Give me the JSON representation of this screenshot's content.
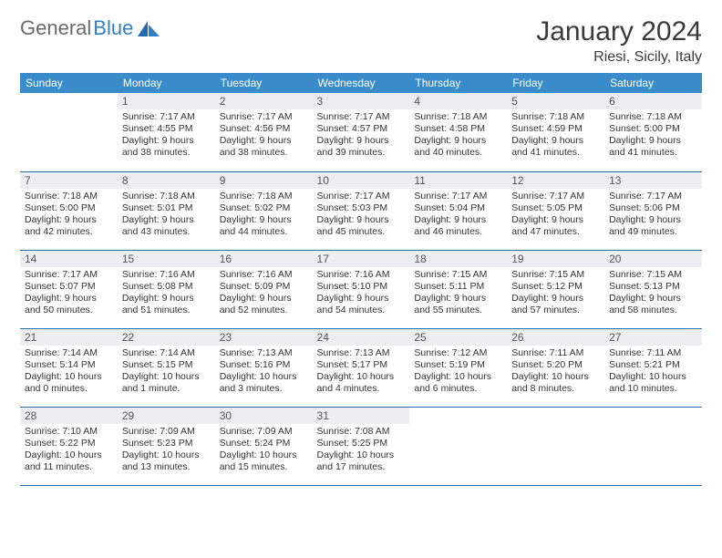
{
  "logo": {
    "text1": "General",
    "text2": "Blue"
  },
  "title": "January 2024",
  "location": "Riesi, Sicily, Italy",
  "colors": {
    "header_bg": "#3a8bc9",
    "header_text": "#ffffff",
    "daynum_bg": "#eceff1",
    "row_border": "#2e6ca6",
    "body_text": "#333333",
    "logo_gray": "#6a6a6a",
    "logo_blue": "#2f7fc2"
  },
  "weekdays": [
    "Sunday",
    "Monday",
    "Tuesday",
    "Wednesday",
    "Thursday",
    "Friday",
    "Saturday"
  ],
  "cells": [
    {
      "n": "",
      "t": ""
    },
    {
      "n": "1",
      "t": "Sunrise: 7:17 AM\nSunset: 4:55 PM\nDaylight: 9 hours and 38 minutes."
    },
    {
      "n": "2",
      "t": "Sunrise: 7:17 AM\nSunset: 4:56 PM\nDaylight: 9 hours and 38 minutes."
    },
    {
      "n": "3",
      "t": "Sunrise: 7:17 AM\nSunset: 4:57 PM\nDaylight: 9 hours and 39 minutes."
    },
    {
      "n": "4",
      "t": "Sunrise: 7:18 AM\nSunset: 4:58 PM\nDaylight: 9 hours and 40 minutes."
    },
    {
      "n": "5",
      "t": "Sunrise: 7:18 AM\nSunset: 4:59 PM\nDaylight: 9 hours and 41 minutes."
    },
    {
      "n": "6",
      "t": "Sunrise: 7:18 AM\nSunset: 5:00 PM\nDaylight: 9 hours and 41 minutes."
    },
    {
      "n": "7",
      "t": "Sunrise: 7:18 AM\nSunset: 5:00 PM\nDaylight: 9 hours and 42 minutes."
    },
    {
      "n": "8",
      "t": "Sunrise: 7:18 AM\nSunset: 5:01 PM\nDaylight: 9 hours and 43 minutes."
    },
    {
      "n": "9",
      "t": "Sunrise: 7:18 AM\nSunset: 5:02 PM\nDaylight: 9 hours and 44 minutes."
    },
    {
      "n": "10",
      "t": "Sunrise: 7:17 AM\nSunset: 5:03 PM\nDaylight: 9 hours and 45 minutes."
    },
    {
      "n": "11",
      "t": "Sunrise: 7:17 AM\nSunset: 5:04 PM\nDaylight: 9 hours and 46 minutes."
    },
    {
      "n": "12",
      "t": "Sunrise: 7:17 AM\nSunset: 5:05 PM\nDaylight: 9 hours and 47 minutes."
    },
    {
      "n": "13",
      "t": "Sunrise: 7:17 AM\nSunset: 5:06 PM\nDaylight: 9 hours and 49 minutes."
    },
    {
      "n": "14",
      "t": "Sunrise: 7:17 AM\nSunset: 5:07 PM\nDaylight: 9 hours and 50 minutes."
    },
    {
      "n": "15",
      "t": "Sunrise: 7:16 AM\nSunset: 5:08 PM\nDaylight: 9 hours and 51 minutes."
    },
    {
      "n": "16",
      "t": "Sunrise: 7:16 AM\nSunset: 5:09 PM\nDaylight: 9 hours and 52 minutes."
    },
    {
      "n": "17",
      "t": "Sunrise: 7:16 AM\nSunset: 5:10 PM\nDaylight: 9 hours and 54 minutes."
    },
    {
      "n": "18",
      "t": "Sunrise: 7:15 AM\nSunset: 5:11 PM\nDaylight: 9 hours and 55 minutes."
    },
    {
      "n": "19",
      "t": "Sunrise: 7:15 AM\nSunset: 5:12 PM\nDaylight: 9 hours and 57 minutes."
    },
    {
      "n": "20",
      "t": "Sunrise: 7:15 AM\nSunset: 5:13 PM\nDaylight: 9 hours and 58 minutes."
    },
    {
      "n": "21",
      "t": "Sunrise: 7:14 AM\nSunset: 5:14 PM\nDaylight: 10 hours and 0 minutes."
    },
    {
      "n": "22",
      "t": "Sunrise: 7:14 AM\nSunset: 5:15 PM\nDaylight: 10 hours and 1 minute."
    },
    {
      "n": "23",
      "t": "Sunrise: 7:13 AM\nSunset: 5:16 PM\nDaylight: 10 hours and 3 minutes."
    },
    {
      "n": "24",
      "t": "Sunrise: 7:13 AM\nSunset: 5:17 PM\nDaylight: 10 hours and 4 minutes."
    },
    {
      "n": "25",
      "t": "Sunrise: 7:12 AM\nSunset: 5:19 PM\nDaylight: 10 hours and 6 minutes."
    },
    {
      "n": "26",
      "t": "Sunrise: 7:11 AM\nSunset: 5:20 PM\nDaylight: 10 hours and 8 minutes."
    },
    {
      "n": "27",
      "t": "Sunrise: 7:11 AM\nSunset: 5:21 PM\nDaylight: 10 hours and 10 minutes."
    },
    {
      "n": "28",
      "t": "Sunrise: 7:10 AM\nSunset: 5:22 PM\nDaylight: 10 hours and 11 minutes."
    },
    {
      "n": "29",
      "t": "Sunrise: 7:09 AM\nSunset: 5:23 PM\nDaylight: 10 hours and 13 minutes."
    },
    {
      "n": "30",
      "t": "Sunrise: 7:09 AM\nSunset: 5:24 PM\nDaylight: 10 hours and 15 minutes."
    },
    {
      "n": "31",
      "t": "Sunrise: 7:08 AM\nSunset: 5:25 PM\nDaylight: 10 hours and 17 minutes."
    },
    {
      "n": "",
      "t": ""
    },
    {
      "n": "",
      "t": ""
    },
    {
      "n": "",
      "t": ""
    }
  ]
}
